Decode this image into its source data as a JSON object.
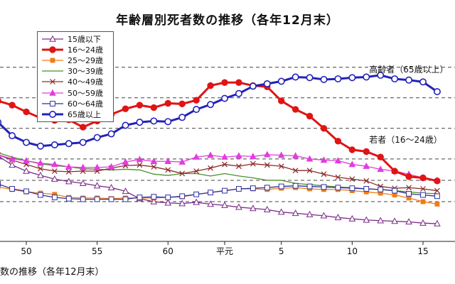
{
  "chart_data": {
    "type": "line",
    "title": "年齢層別死者数の推移（各年12月末）",
    "footer_caption": "数の推移（各年12月末）",
    "xlabel": "",
    "ylabel": "",
    "x_range": [
      46,
      78
    ],
    "y_range": [
      0,
      3300
    ],
    "gridlines_y": [
      650,
      1000,
      1350,
      1850,
      2350,
      2850
    ],
    "x_ticks": [
      {
        "x": 49,
        "label": "50"
      },
      {
        "x": 54,
        "label": "55"
      },
      {
        "x": 59,
        "label": "60"
      },
      {
        "x": 63,
        "label": "平元"
      },
      {
        "x": 67,
        "label": "5"
      },
      {
        "x": 72,
        "label": "10"
      },
      {
        "x": 77,
        "label": "15"
      }
    ],
    "series_labels": [
      {
        "text": "高齢者（65歳以上）",
        "x": 73,
        "y": 2800
      },
      {
        "text": "若者（16〜24歳）",
        "x": 73,
        "y": 1650
      }
    ],
    "series": [
      {
        "name": "15歳以下",
        "color": "#7a2a86",
        "marker": "triangle-open",
        "stroke_width": 1.3,
        "x": [
          46,
          47,
          48,
          49,
          50,
          51,
          52,
          53,
          54,
          55,
          56,
          57,
          58,
          59,
          60,
          61,
          62,
          63,
          64,
          65,
          66,
          67,
          68,
          69,
          70,
          71,
          72,
          73,
          74,
          75,
          76,
          77,
          78
        ],
        "y": [
          1750,
          1400,
          1250,
          1150,
          1080,
          1020,
          980,
          950,
          910,
          880,
          820,
          700,
          650,
          630,
          620,
          640,
          610,
          590,
          560,
          540,
          520,
          480,
          460,
          440,
          420,
          390,
          370,
          350,
          340,
          330,
          320,
          300,
          290
        ]
      },
      {
        "name": "16〜24歳",
        "color": "#e01414",
        "marker": "circle-filled",
        "stroke_width": 3,
        "x": [
          46,
          47,
          48,
          49,
          50,
          51,
          52,
          53,
          54,
          55,
          56,
          57,
          58,
          59,
          60,
          61,
          62,
          63,
          64,
          65,
          66,
          67,
          68,
          69,
          70,
          71,
          72,
          73,
          74,
          75,
          76,
          77,
          78
        ],
        "y": [
          2700,
          2300,
          2230,
          2120,
          2020,
          1980,
          1990,
          1870,
          1970,
          2080,
          2170,
          2230,
          2190,
          2260,
          2250,
          2310,
          2550,
          2600,
          2600,
          2550,
          2530,
          2300,
          2160,
          2050,
          1850,
          1640,
          1500,
          1470,
          1380,
          1150,
          1060,
          1040,
          990
        ]
      },
      {
        "name": "25〜29歳",
        "color": "#f07c16",
        "marker": "square-filled",
        "stroke_width": 1.3,
        "x": [
          46,
          47,
          48,
          49,
          50,
          51,
          52,
          53,
          54,
          55,
          56,
          57,
          58,
          59,
          60,
          61,
          62,
          63,
          64,
          65,
          66,
          67,
          68,
          69,
          70,
          71,
          72,
          73,
          74,
          75,
          76,
          77,
          78
        ],
        "y": [
          1050,
          890,
          850,
          810,
          790,
          770,
          720,
          710,
          710,
          700,
          710,
          710,
          710,
          720,
          730,
          770,
          800,
          830,
          860,
          860,
          850,
          870,
          880,
          860,
          850,
          850,
          830,
          810,
          790,
          760,
          710,
          650,
          610
        ]
      },
      {
        "name": "30〜39歳",
        "color": "#4c8f2c",
        "marker": "none",
        "stroke_width": 1.3,
        "x": [
          46,
          47,
          48,
          49,
          50,
          51,
          52,
          53,
          54,
          55,
          56,
          57,
          58,
          59,
          60,
          61,
          62,
          63,
          64,
          65,
          66,
          67,
          68,
          69,
          70,
          71,
          72,
          73,
          74,
          75,
          76,
          77,
          78
        ],
        "y": [
          1650,
          1450,
          1380,
          1320,
          1270,
          1240,
          1220,
          1190,
          1180,
          1170,
          1180,
          1170,
          1100,
          1080,
          1110,
          1110,
          1070,
          1110,
          1070,
          1040,
          1000,
          1000,
          950,
          930,
          910,
          890,
          880,
          860,
          850,
          830,
          810,
          790,
          780
        ]
      },
      {
        "name": "40〜49歳",
        "color": "#8a2a2a",
        "marker": "x",
        "stroke_width": 1.3,
        "x": [
          46,
          47,
          48,
          49,
          50,
          51,
          52,
          53,
          54,
          55,
          56,
          57,
          58,
          59,
          60,
          61,
          62,
          63,
          64,
          65,
          66,
          67,
          68,
          69,
          70,
          71,
          72,
          73,
          74,
          75,
          76,
          77,
          78
        ],
        "y": [
          1700,
          1420,
          1330,
          1260,
          1190,
          1150,
          1140,
          1150,
          1150,
          1200,
          1240,
          1250,
          1220,
          1170,
          1110,
          1150,
          1200,
          1260,
          1230,
          1270,
          1250,
          1230,
          1160,
          1160,
          1100,
          1050,
          1020,
          990,
          900,
          870,
          880,
          860,
          830
        ]
      },
      {
        "name": "50〜59歳",
        "color": "#e23ce0",
        "marker": "triangle-filled",
        "stroke_width": 1.3,
        "x": [
          46,
          47,
          48,
          49,
          50,
          51,
          52,
          53,
          54,
          55,
          56,
          57,
          58,
          59,
          60,
          61,
          62,
          63,
          64,
          65,
          66,
          67,
          68,
          69,
          70,
          71,
          72,
          73,
          74,
          75,
          76,
          77,
          78
        ],
        "y": [
          1700,
          1420,
          1350,
          1320,
          1280,
          1260,
          1220,
          1210,
          1210,
          1220,
          1300,
          1340,
          1310,
          1310,
          1300,
          1380,
          1410,
          1380,
          1400,
          1390,
          1420,
          1410,
          1400,
          1350,
          1330,
          1320,
          1260,
          1230,
          1180,
          1150,
          1100,
          1040,
          1000
        ]
      },
      {
        "name": "60〜64歳",
        "color": "#2e2e9e",
        "marker": "square-open",
        "stroke_width": 1.3,
        "x": [
          46,
          47,
          48,
          49,
          50,
          51,
          52,
          53,
          54,
          55,
          56,
          57,
          58,
          59,
          60,
          61,
          62,
          63,
          64,
          65,
          66,
          67,
          68,
          69,
          70,
          71,
          72,
          73,
          74,
          75,
          76,
          77,
          78
        ],
        "y": [
          1250,
          940,
          860,
          820,
          760,
          720,
          700,
          690,
          690,
          690,
          690,
          720,
          730,
          720,
          740,
          770,
          800,
          830,
          860,
          870,
          880,
          900,
          910,
          900,
          890,
          880,
          870,
          860,
          850,
          830,
          780,
          760,
          740
        ]
      },
      {
        "name": "65歳以上",
        "color": "#2222b8",
        "marker": "circle-open",
        "stroke_width": 3,
        "x": [
          46,
          47,
          48,
          49,
          50,
          51,
          52,
          53,
          54,
          55,
          56,
          57,
          58,
          59,
          60,
          61,
          62,
          63,
          64,
          65,
          66,
          67,
          68,
          69,
          70,
          71,
          72,
          73,
          74,
          75,
          76,
          77,
          78
        ],
        "y": [
          2350,
          1950,
          1730,
          1620,
          1560,
          1580,
          1600,
          1620,
          1700,
          1760,
          1900,
          1950,
          1970,
          1960,
          2030,
          2160,
          2240,
          2340,
          2420,
          2540,
          2580,
          2620,
          2690,
          2680,
          2650,
          2660,
          2680,
          2690,
          2720,
          2660,
          2640,
          2610,
          2450
        ]
      }
    ]
  }
}
